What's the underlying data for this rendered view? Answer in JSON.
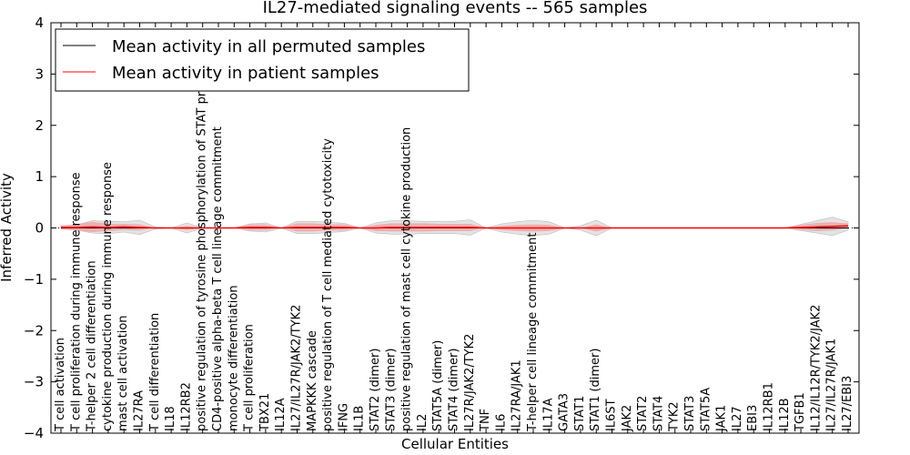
{
  "chart_data": {
    "type": "line",
    "title": "IL27-mediated signaling events -- 565 samples",
    "xlabel": "Cellular Entities",
    "ylabel": "Inferred Activity",
    "ylim": [
      -4,
      4
    ],
    "yticks": [
      -4,
      -3,
      -2,
      -1,
      0,
      1,
      2,
      3,
      4
    ],
    "ytick_labels": [
      "−4",
      "−3",
      "−2",
      "−1",
      "0",
      "1",
      "2",
      "3",
      "4"
    ],
    "legend_position": "top-left",
    "categories": [
      "T cell activation",
      "T cell proliferation during immune response",
      "T-helper 2 cell differentiation",
      "cytokine production during immune response",
      "mast cell activation",
      "IL27RA",
      "T cell differentiation",
      "IL18",
      "IL12RB2",
      "positive regulation of tyrosine phosphorylation of STAT protein",
      "CD4-positive alpha-beta T cell lineage commitment",
      "monocyte differentiation",
      "T cell proliferation",
      "TBX21",
      "IL12A",
      "IL27/IL27R/JAK2/TYK2",
      "MAPKKK cascade",
      "positive regulation of T cell mediated cytotoxicity",
      "IFNG",
      "IL1B",
      "STAT2 (dimer)",
      "STAT3 (dimer)",
      "positive regulation of mast cell cytokine production",
      "IL2",
      "STAT5A (dimer)",
      "STAT4 (dimer)",
      "IL27R/JAK2/TYK2",
      "TNF",
      "IL6",
      "IL27RA/JAK1",
      "T-helper cell lineage commitment",
      "IL17A",
      "GATA3",
      "STAT1",
      "STAT1 (dimer)",
      "IL6ST",
      "JAK2",
      "STAT2",
      "STAT4",
      "TYK2",
      "STAT3",
      "STAT5A",
      "JAK1",
      "IL27",
      "EBI3",
      "IL12RB1",
      "IL12B",
      "TGFB1",
      "IL12/IL12R/TYK2/JAK2",
      "IL27/IL27R/JAK1",
      "IL27/EBI3"
    ],
    "series": [
      {
        "name": "Mean activity in all permuted samples",
        "color": "#000000",
        "values": [
          0,
          0,
          0,
          0,
          0,
          0,
          0,
          0,
          0,
          0,
          0,
          0,
          0,
          0,
          0,
          0,
          0,
          0,
          0,
          0,
          0,
          0,
          0,
          0,
          0,
          0,
          0,
          0,
          0,
          0,
          0,
          0,
          0,
          0,
          0,
          0,
          0,
          0,
          0,
          0,
          0,
          0,
          0,
          0,
          0,
          0,
          0,
          0,
          0,
          0,
          0
        ]
      },
      {
        "name": "Mean activity in patient samples",
        "color": "#ff0000",
        "values": [
          0.01,
          0.01,
          0.02,
          0.01,
          0.02,
          0.01,
          0,
          0,
          0,
          0,
          0,
          0,
          0.01,
          0.01,
          0,
          0.01,
          0.01,
          0.01,
          0.01,
          0,
          0,
          0.01,
          0.01,
          0.01,
          0.01,
          0.01,
          0.01,
          0,
          0,
          0,
          0,
          0,
          0,
          0,
          0,
          0,
          0,
          0,
          0,
          0,
          0,
          0,
          0,
          0,
          0,
          0,
          0,
          0.01,
          0.02,
          0.03,
          0.04
        ]
      }
    ],
    "band_inner": [
      0.04,
      0.06,
      0.1,
      0.07,
      0.06,
      0.06,
      0,
      0,
      0.04,
      0,
      0,
      0,
      0.06,
      0.06,
      0,
      0.08,
      0.08,
      0.06,
      0.06,
      0,
      0.06,
      0.08,
      0.08,
      0.08,
      0.07,
      0.07,
      0.07,
      0,
      0.04,
      0.06,
      0.07,
      0.06,
      0,
      0,
      0.07,
      0,
      0,
      0,
      0,
      0,
      0,
      0,
      0,
      0,
      0,
      0,
      0,
      0.05,
      0.08,
      0.08,
      0.05
    ],
    "band_outer": [
      0.03,
      0.05,
      0.12,
      0.12,
      0.1,
      0.14,
      0.02,
      0,
      0.1,
      0,
      0,
      0,
      0.07,
      0.09,
      0,
      0.12,
      0.12,
      0.1,
      0.08,
      0,
      0.1,
      0.13,
      0.13,
      0.12,
      0.12,
      0.12,
      0.15,
      0,
      0.08,
      0.12,
      0.15,
      0.12,
      0,
      0.04,
      0.15,
      0,
      0,
      0,
      0,
      0,
      0,
      0,
      0,
      0,
      0,
      0,
      0,
      0.06,
      0.12,
      0.18,
      0.08
    ]
  }
}
